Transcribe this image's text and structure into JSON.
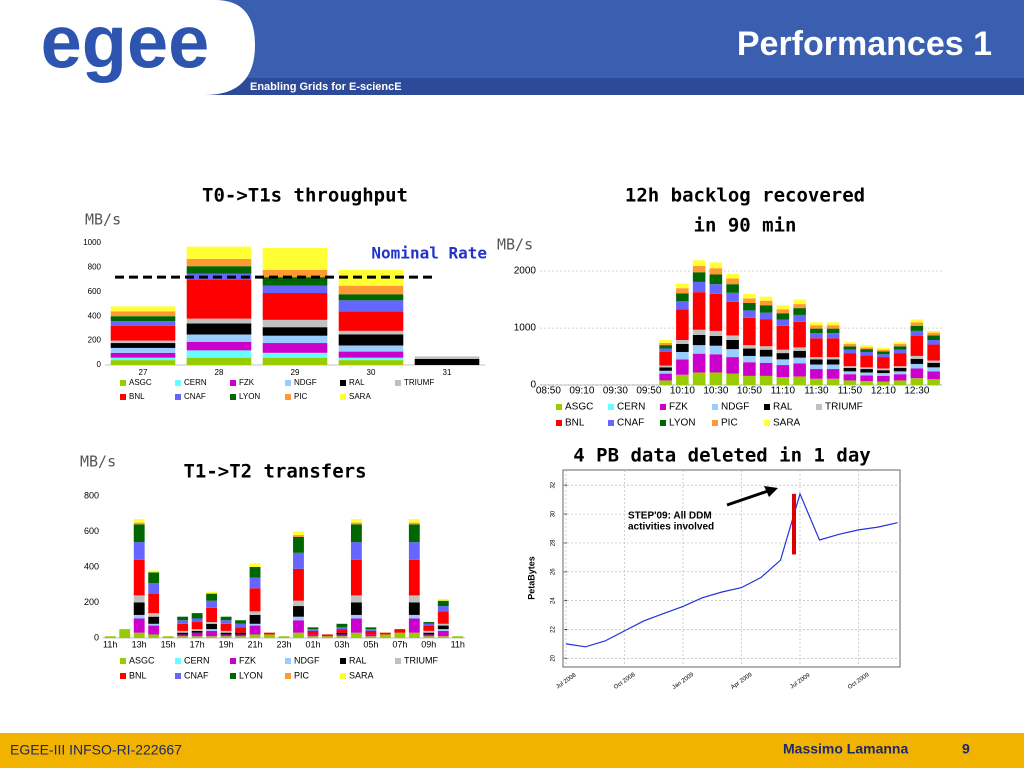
{
  "header": {
    "logo": "egee",
    "title": "Performances 1",
    "tagline": "Enabling Grids for E-sciencE"
  },
  "footer": {
    "left": "EGEE-III INFSO-RI-222667",
    "author": "Massimo Lamanna",
    "page": 9
  },
  "chart_data": [
    {
      "type": "bar",
      "stacked": true,
      "title": [
        "T0->T1s throughput"
      ],
      "y_label": "MB/s",
      "categories": [
        "27",
        "28",
        "29",
        "30",
        "31"
      ],
      "reference_line": {
        "label": "Nominal Rate",
        "value": 720
      },
      "ylim": [
        0,
        1000
      ],
      "yticks": [
        0,
        200,
        400,
        600,
        800,
        1000
      ],
      "grid": false,
      "series": [
        {
          "name": "ASGC",
          "color": "#99cc00",
          "values": [
            40,
            60,
            60,
            40,
            0
          ]
        },
        {
          "name": "CERN",
          "color": "#66ffff",
          "values": [
            20,
            60,
            40,
            20,
            0
          ]
        },
        {
          "name": "FZK",
          "color": "#cc00cc",
          "values": [
            40,
            70,
            80,
            50,
            0
          ]
        },
        {
          "name": "NDGF",
          "color": "#99ccff",
          "values": [
            40,
            60,
            60,
            50,
            0
          ]
        },
        {
          "name": "RAL",
          "color": "#000000",
          "values": [
            40,
            90,
            70,
            90,
            50
          ]
        },
        {
          "name": "TRIUMF",
          "color": "#c0c0c0",
          "values": [
            20,
            40,
            60,
            30,
            20
          ]
        },
        {
          "name": "BNL",
          "color": "#ff0000",
          "values": [
            120,
            320,
            220,
            160,
            0
          ]
        },
        {
          "name": "CNAF",
          "color": "#6666ff",
          "values": [
            40,
            50,
            60,
            90,
            0
          ]
        },
        {
          "name": "LYON",
          "color": "#006600",
          "values": [
            40,
            60,
            70,
            50,
            0
          ]
        },
        {
          "name": "PIC",
          "color": "#ff9933",
          "values": [
            40,
            60,
            60,
            70,
            0
          ]
        },
        {
          "name": "SARA",
          "color": "#ffff33",
          "values": [
            40,
            100,
            180,
            130,
            0
          ]
        }
      ]
    },
    {
      "type": "bar",
      "stacked": true,
      "title": [
        "12h backlog recovered",
        "in 90 min"
      ],
      "y_label": "MB/s",
      "categories": [
        "08:50",
        null,
        "09:10",
        null,
        "09:30",
        null,
        "09:50",
        null,
        "10:10",
        null,
        "10:30",
        null,
        "10:50",
        null,
        "11:10",
        null,
        "11:30",
        null,
        "11:50",
        null,
        "12:10",
        null,
        "12:30",
        null
      ],
      "ylim": [
        0,
        2300
      ],
      "yticks": [
        0,
        1000,
        2000
      ],
      "grid": true,
      "series": [
        {
          "name": "ASGC",
          "color": "#99cc00",
          "values": [
            0,
            0,
            0,
            0,
            0,
            0,
            0,
            80,
            180,
            220,
            220,
            200,
            160,
            160,
            140,
            150,
            110,
            110,
            80,
            70,
            60,
            80,
            120,
            100
          ]
        },
        {
          "name": "CERN",
          "color": "#66ffff",
          "values": [
            0,
            0,
            0,
            0,
            0,
            0,
            0,
            0,
            0,
            0,
            0,
            0,
            0,
            0,
            0,
            0,
            0,
            0,
            0,
            0,
            0,
            0,
            0,
            0
          ]
        },
        {
          "name": "FZK",
          "color": "#cc00cc",
          "values": [
            0,
            0,
            0,
            0,
            0,
            0,
            0,
            120,
            270,
            330,
            320,
            290,
            240,
            230,
            210,
            230,
            170,
            170,
            110,
            100,
            100,
            110,
            170,
            140
          ]
        },
        {
          "name": "NDGF",
          "color": "#99ccff",
          "values": [
            0,
            0,
            0,
            0,
            0,
            0,
            0,
            50,
            130,
            150,
            150,
            140,
            110,
            110,
            100,
            100,
            80,
            80,
            50,
            50,
            50,
            50,
            80,
            70
          ]
        },
        {
          "name": "RAL",
          "color": "#000000",
          "values": [
            0,
            0,
            0,
            0,
            0,
            0,
            0,
            60,
            140,
            180,
            170,
            160,
            130,
            120,
            110,
            120,
            90,
            90,
            60,
            60,
            50,
            60,
            90,
            80
          ]
        },
        {
          "name": "TRIUMF",
          "color": "#c0c0c0",
          "values": [
            0,
            0,
            0,
            0,
            0,
            0,
            0,
            30,
            70,
            90,
            90,
            80,
            60,
            60,
            60,
            60,
            40,
            40,
            30,
            30,
            30,
            30,
            50,
            40
          ]
        },
        {
          "name": "BNL",
          "color": "#ff0000",
          "values": [
            0,
            0,
            0,
            0,
            0,
            0,
            0,
            240,
            540,
            660,
            650,
            590,
            480,
            470,
            420,
            450,
            330,
            330,
            230,
            210,
            200,
            230,
            350,
            280
          ]
        },
        {
          "name": "CNAF",
          "color": "#6666ff",
          "values": [
            0,
            0,
            0,
            0,
            0,
            0,
            0,
            60,
            140,
            180,
            170,
            160,
            130,
            120,
            110,
            120,
            90,
            90,
            60,
            60,
            50,
            60,
            90,
            80
          ]
        },
        {
          "name": "LYON",
          "color": "#006600",
          "values": [
            0,
            0,
            0,
            0,
            0,
            0,
            0,
            60,
            140,
            170,
            170,
            150,
            130,
            130,
            110,
            120,
            80,
            80,
            60,
            50,
            50,
            60,
            90,
            80
          ]
        },
        {
          "name": "PIC",
          "color": "#ff9933",
          "values": [
            0,
            0,
            0,
            0,
            0,
            0,
            0,
            40,
            90,
            110,
            110,
            100,
            80,
            80,
            70,
            70,
            60,
            60,
            40,
            30,
            30,
            40,
            60,
            50
          ]
        },
        {
          "name": "SARA",
          "color": "#ffff33",
          "values": [
            0,
            0,
            0,
            0,
            0,
            0,
            0,
            50,
            80,
            100,
            100,
            80,
            80,
            70,
            70,
            80,
            50,
            50,
            30,
            40,
            30,
            30,
            50,
            30
          ]
        }
      ]
    },
    {
      "type": "bar",
      "stacked": true,
      "title": [
        "T1->T2 transfers"
      ],
      "y_label": "MB/s",
      "categories": [
        "11h",
        null,
        "13h",
        null,
        "15h",
        null,
        "17h",
        null,
        "19h",
        null,
        "21h",
        null,
        "23h",
        null,
        "01h",
        null,
        "03h",
        null,
        "05h",
        null,
        "07h",
        null,
        "09h",
        null,
        "11h"
      ],
      "ylim": [
        0,
        800
      ],
      "yticks": [
        0,
        200,
        400,
        600,
        800
      ],
      "grid": false,
      "series": [
        {
          "name": "ASGC",
          "color": "#99cc00",
          "values": [
            10,
            50,
            30,
            20,
            10,
            10,
            10,
            10,
            10,
            10,
            20,
            20,
            10,
            30,
            10,
            10,
            10,
            30,
            10,
            20,
            30,
            30,
            10,
            10,
            10
          ]
        },
        {
          "name": "CERN",
          "color": "#66ffff",
          "values": [
            0,
            0,
            0,
            0,
            0,
            0,
            0,
            0,
            0,
            0,
            0,
            0,
            0,
            0,
            0,
            0,
            0,
            0,
            0,
            0,
            0,
            0,
            0,
            0,
            0
          ]
        },
        {
          "name": "FZK",
          "color": "#cc00cc",
          "values": [
            0,
            0,
            80,
            50,
            0,
            10,
            20,
            30,
            10,
            10,
            50,
            0,
            0,
            70,
            10,
            0,
            10,
            80,
            10,
            0,
            0,
            80,
            10,
            30,
            0
          ]
        },
        {
          "name": "NDGF",
          "color": "#99ccff",
          "values": [
            0,
            0,
            20,
            10,
            0,
            0,
            0,
            10,
            0,
            0,
            10,
            0,
            0,
            20,
            0,
            0,
            0,
            20,
            0,
            0,
            0,
            20,
            0,
            10,
            0
          ]
        },
        {
          "name": "RAL",
          "color": "#000000",
          "values": [
            0,
            0,
            70,
            40,
            0,
            10,
            10,
            30,
            10,
            10,
            50,
            0,
            0,
            60,
            0,
            0,
            10,
            70,
            0,
            0,
            0,
            70,
            10,
            20,
            0
          ]
        },
        {
          "name": "TRIUMF",
          "color": "#c0c0c0",
          "values": [
            0,
            0,
            40,
            20,
            0,
            10,
            10,
            10,
            10,
            0,
            20,
            0,
            0,
            30,
            0,
            0,
            0,
            40,
            0,
            0,
            0,
            40,
            10,
            10,
            0
          ]
        },
        {
          "name": "BNL",
          "color": "#ff0000",
          "values": [
            0,
            0,
            200,
            110,
            0,
            40,
            40,
            80,
            40,
            30,
            130,
            10,
            0,
            180,
            20,
            10,
            20,
            200,
            20,
            10,
            20,
            200,
            30,
            70,
            0
          ]
        },
        {
          "name": "CNAF",
          "color": "#6666ff",
          "values": [
            0,
            0,
            100,
            60,
            0,
            20,
            20,
            40,
            20,
            20,
            60,
            0,
            0,
            90,
            10,
            0,
            10,
            100,
            10,
            0,
            0,
            100,
            10,
            30,
            0
          ]
        },
        {
          "name": "LYON",
          "color": "#006600",
          "values": [
            0,
            0,
            100,
            60,
            0,
            20,
            30,
            40,
            20,
            20,
            60,
            0,
            0,
            90,
            10,
            0,
            20,
            100,
            10,
            0,
            0,
            100,
            10,
            30,
            0
          ]
        },
        {
          "name": "PIC",
          "color": "#ff9933",
          "values": [
            0,
            0,
            10,
            0,
            0,
            0,
            0,
            0,
            0,
            0,
            0,
            0,
            0,
            10,
            0,
            0,
            0,
            10,
            0,
            0,
            0,
            10,
            0,
            0,
            0
          ]
        },
        {
          "name": "SARA",
          "color": "#ffff33",
          "values": [
            0,
            0,
            20,
            10,
            0,
            0,
            0,
            10,
            0,
            0,
            20,
            0,
            0,
            20,
            0,
            0,
            0,
            20,
            0,
            0,
            0,
            20,
            0,
            10,
            0
          ]
        }
      ]
    },
    {
      "type": "line",
      "title": [
        "4 PB data deleted in 1 day"
      ],
      "y_label": "PetaBytes",
      "annotation": [
        "STEP'09: All DDM",
        "activities involved"
      ],
      "categories": [
        "Jul 2008",
        null,
        null,
        "Oct 2008",
        null,
        null,
        "Jan 2009",
        null,
        null,
        "Apr 2009",
        null,
        null,
        "Jul 2009",
        null,
        null,
        "Oct 2009",
        null,
        null
      ],
      "ylim": [
        19.4,
        32.5
      ],
      "yticks": [
        20,
        22,
        24,
        26,
        28,
        30,
        32
      ],
      "grid": true,
      "series": [
        {
          "color": "#2233dd",
          "values": [
            21.0,
            20.8,
            21.2,
            21.9,
            22.6,
            23.1,
            23.6,
            24.2,
            24.6,
            24.9,
            25.6,
            26.8,
            31.4,
            28.2,
            28.6,
            28.9,
            29.1,
            29.4
          ]
        }
      ],
      "deletion": {
        "color": "#dd0000",
        "values": [
          31.4,
          27.2
        ]
      }
    }
  ]
}
